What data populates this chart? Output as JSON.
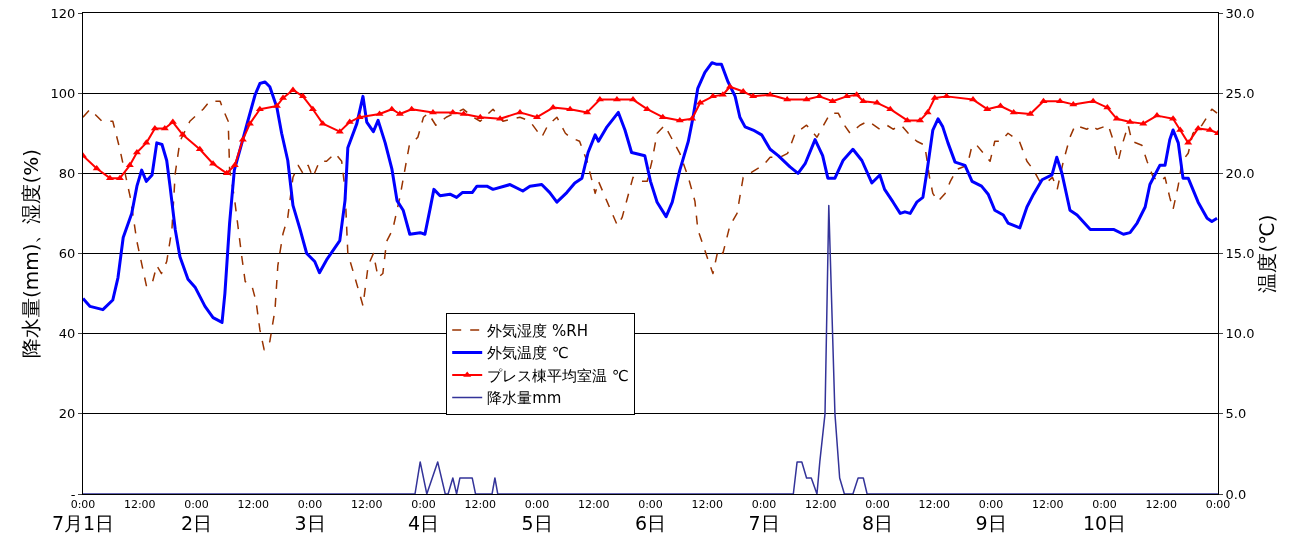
{
  "chart_data": {
    "type": "line",
    "ylabel": "降水量(mm)、湿度(%)",
    "y2label": "温度(℃)",
    "xlim": [
      "--07-01T00:00",
      "--07-11T00:00"
    ],
    "xticks": [
      {
        "value": "--07-01T00:00",
        "label": "0:00"
      },
      {
        "value": "--07-01T12:00",
        "label": "12:00"
      },
      {
        "value": "--07-02T00:00",
        "label": "0:00"
      },
      {
        "value": "--07-02T12:00",
        "label": "12:00"
      },
      {
        "value": "--07-03T00:00",
        "label": "0:00"
      },
      {
        "value": "--07-03T12:00",
        "label": "12:00"
      },
      {
        "value": "--07-04T00:00",
        "label": "0:00"
      },
      {
        "value": "--07-04T12:00",
        "label": "12:00"
      },
      {
        "value": "--07-05T00:00",
        "label": "0:00"
      },
      {
        "value": "--07-05T12:00",
        "label": "12:00"
      },
      {
        "value": "--07-06T00:00",
        "label": "0:00"
      },
      {
        "value": "--07-06T12:00",
        "label": "12:00"
      },
      {
        "value": "--07-07T00:00",
        "label": "0:00"
      },
      {
        "value": "--07-07T12:00",
        "label": "12:00"
      },
      {
        "value": "--07-08T00:00",
        "label": "0:00"
      },
      {
        "value": "--07-08T12:00",
        "label": "12:00"
      },
      {
        "value": "--07-09T00:00",
        "label": "0:00"
      },
      {
        "value": "--07-09T12:00",
        "label": "12:00"
      },
      {
        "value": "--07-10T00:00",
        "label": "0:00"
      },
      {
        "value": "--07-10T12:00",
        "label": "12:00"
      },
      {
        "value": "--07-11T00:00",
        "label": "0:00"
      }
    ],
    "x2lim": [
      "--07-01T00:00",
      "--07-11T00:00"
    ],
    "x2ticks": [
      {
        "value": "--07-01T00:00",
        "label": "7月1日"
      },
      {
        "value": "--07-02T00:00",
        "label": "2日"
      },
      {
        "value": "--07-03T00:00",
        "label": "3日"
      },
      {
        "value": "--07-04T00:00",
        "label": "4日"
      },
      {
        "value": "--07-05T00:00",
        "label": "5日"
      },
      {
        "value": "--07-06T00:00",
        "label": "6日"
      },
      {
        "value": "--07-07T00:00",
        "label": "7日"
      },
      {
        "value": "--07-08T00:00",
        "label": "8日"
      },
      {
        "value": "--07-09T00:00",
        "label": "9日"
      },
      {
        "value": "--07-10T00:00",
        "label": "10日"
      }
    ],
    "ylim": [
      0,
      120
    ],
    "yticks": [
      {
        "value": 0,
        "label": "-"
      },
      20,
      40,
      60,
      80,
      100,
      120
    ],
    "y2lim": [
      0,
      30
    ],
    "y2ticks": [
      {
        "value": 0,
        "label": "0.0"
      },
      {
        "value": 5,
        "label": "5.0"
      },
      {
        "value": 10,
        "label": "10.0"
      },
      {
        "value": 15,
        "label": "15.0"
      },
      {
        "value": 20,
        "label": "20.0"
      },
      {
        "value": 25,
        "label": "25.0"
      },
      {
        "value": 30,
        "label": "30.0"
      }
    ],
    "grid": "y",
    "legend": "bottom",
    "series": [
      {
        "name": "外気湿度 %RH",
        "color": "#993300",
        "marker": "none",
        "line_style": "dashed",
        "x": [
          "--07-01T00:00",
          "--07-01T01:30",
          "--07-01T04:00",
          "--07-01T06:18",
          "--07-01T07:48",
          "--07-01T10:00",
          "--07-01T11:24",
          "--07-01T13:24",
          "--07-01T14:30",
          "--07-01T15:36",
          "--07-01T16:36",
          "--07-01T17:42",
          "--07-01T18:48",
          "--07-01T19:30",
          "--07-01T20:30",
          "--07-01T22:36",
          "--07-02T01:24",
          "--07-02T02:48",
          "--07-02T05:00",
          "--07-02T05:36",
          "--07-02T06:42",
          "--07-02T07:00",
          "--07-02T08:00",
          "--07-02T09:36",
          "--07-02T10:18",
          "--07-02T11:42",
          "--07-02T12:36",
          "--07-02T13:24",
          "--07-02T14:18",
          "--07-02T15:30",
          "--07-02T16:36",
          "--07-02T17:12",
          "--07-02T18:18",
          "--07-02T19:18",
          "--07-02T20:24",
          "--07-02T21:30",
          "--07-02T22:30",
          "--07-02T23:36",
          "--07-03T00:36",
          "--07-03T02:00",
          "--07-03T03:30",
          "--07-03T05:18",
          "--07-03T06:42",
          "--07-03T07:24",
          "--07-03T08:00",
          "--07-03T09:30",
          "--07-03T11:12",
          "--07-03T12:18",
          "--07-03T13:24",
          "--07-03T14:24",
          "--07-03T15:24",
          "--07-03T16:12",
          "--07-03T17:30",
          "--07-03T19:00",
          "--07-03T21:00",
          "--07-03T22:48",
          "--07-04T00:00",
          "--07-04T01:00",
          "--07-04T02:36",
          "--07-04T04:48",
          "--07-04T08:24",
          "--07-04T10:30",
          "--07-04T12:00",
          "--07-04T14:42",
          "--07-04T16:48",
          "--07-04T20:24",
          "--07-04T22:30",
          "--07-05T01:00",
          "--07-05T02:18",
          "--07-05T04:12",
          "--07-05T06:00",
          "--07-05T07:00",
          "--07-05T09:00",
          "--07-05T10:36",
          "--07-05T12:18",
          "--07-05T13:00",
          "--07-05T14:48",
          "--07-05T17:00",
          "--07-05T18:00",
          "--07-05T20:18",
          "--07-05T21:48",
          "--07-05T23:18",
          "--07-06T00:18",
          "--07-06T01:24",
          "--07-06T03:00",
          "--07-06T04:48",
          "--07-06T06:12",
          "--07-06T08:00",
          "--07-06T09:24",
          "--07-06T10:00",
          "--07-06T12:00",
          "--07-06T13:12",
          "--07-06T14:18",
          "--07-06T15:18",
          "--07-06T16:48",
          "--07-06T18:18",
          "--07-06T19:36",
          "--07-06T21:00",
          "--07-06T23:48",
          "--07-07T01:18",
          "--07-07T03:24",
          "--07-07T05:00",
          "--07-07T06:36",
          "--07-07T09:00",
          "--07-07T11:12",
          "--07-07T14:00",
          "--07-07T15:42",
          "--07-07T17:00",
          "--07-07T18:12",
          "--07-07T20:18",
          "--07-07T22:00",
          "--07-08T00:30",
          "--07-08T02:00",
          "--07-08T03:18",
          "--07-08T05:00",
          "--07-08T06:30",
          "--07-08T08:18",
          "--07-08T10:00",
          "--07-08T11:00",
          "--07-08T11:42",
          "--07-08T12:48",
          "--07-08T14:18",
          "--07-08T15:24",
          "--07-08T16:48",
          "--07-08T19:00",
          "--07-08T20:00",
          "--07-08T21:00",
          "--07-08T23:48",
          "--07-09T00:48",
          "--07-09T02:00",
          "--07-09T03:36",
          "--07-09T06:00",
          "--07-09T07:36",
          "--07-09T08:54",
          "--07-09T10:18",
          "--07-09T12:00",
          "--07-09T13:00",
          "--07-09T14:00",
          "--07-09T15:18",
          "--07-09T16:42",
          "--07-09T17:48",
          "--07-09T20:18",
          "--07-09T21:18",
          "--07-09T22:24",
          "--07-10T00:48",
          "--07-10T01:54",
          "--07-10T02:54",
          "--07-10T03:42",
          "--07-10T05:00",
          "--07-10T05:48",
          "--07-10T07:54",
          "--07-10T09:00",
          "--07-10T10:18",
          "--07-10T11:42",
          "--07-10T12:48",
          "--07-10T13:48",
          "--07-10T14:30",
          "--07-10T15:36",
          "--07-10T16:24",
          "--07-10T17:42",
          "--07-10T18:42",
          "--07-10T20:36",
          "--07-10T22:42",
          "--07-10T23:48"
        ],
        "values": [
          94,
          96,
          93,
          93,
          86,
          74,
          63,
          52,
          52,
          57,
          55,
          58,
          66,
          80,
          88,
          93,
          96,
          98,
          98,
          96,
          93,
          81,
          74,
          59,
          53,
          52,
          48,
          41,
          36,
          38,
          46,
          57,
          65,
          69,
          79,
          82,
          80,
          82,
          79,
          83,
          83,
          85,
          83,
          76,
          60,
          54,
          47,
          57,
          60,
          54,
          55,
          63,
          66,
          74,
          87,
          89,
          94,
          95,
          92,
          94,
          96,
          94,
          93,
          96,
          93,
          94,
          93,
          89,
          92,
          94,
          90,
          89,
          88,
          83,
          75,
          78,
          73,
          67,
          69,
          79,
          78,
          78,
          83,
          90,
          92,
          88,
          85,
          79,
          73,
          66,
          59,
          55,
          61,
          60,
          67,
          70,
          79,
          80,
          82,
          84,
          84,
          85,
          90,
          92,
          89,
          95,
          95,
          92,
          90,
          92,
          93,
          91,
          92,
          91,
          92,
          90,
          88,
          87,
          79,
          75,
          73,
          75,
          78,
          81,
          82,
          87,
          87,
          83,
          88,
          88,
          90,
          88,
          83,
          81,
          78,
          78,
          79,
          76,
          83,
          89,
          92,
          91,
          92,
          91,
          92,
          88,
          83,
          87,
          92,
          88,
          87,
          83,
          79,
          78,
          79,
          74,
          71,
          77,
          83,
          85,
          90,
          92,
          96,
          95
        ]
      },
      {
        "name": "外気温度 ℃",
        "color": "#0000ff",
        "marker": "none",
        "line_style": "solid",
        "axis": "y2",
        "x": [
          "--07-01T00:00",
          "--07-01T01:30",
          "--07-01T04:12",
          "--07-01T06:18",
          "--07-01T07:24",
          "--07-01T08:30",
          "--07-01T10:18",
          "--07-01T11:24",
          "--07-01T12:24",
          "--07-01T13:24",
          "--07-01T14:36",
          "--07-01T15:36",
          "--07-01T16:42",
          "--07-01T17:42",
          "--07-01T18:24",
          "--07-01T19:30",
          "--07-01T20:30",
          "--07-01T22:12",
          "--07-01T23:42",
          "--07-02T01:48",
          "--07-02T03:30",
          "--07-02T05:24",
          "--07-02T06:00",
          "--07-02T07:00",
          "--07-02T08:00",
          "--07-02T09:36",
          "--07-02T10:42",
          "--07-02T12:24",
          "--07-02T13:24",
          "--07-02T14:30",
          "--07-02T15:30",
          "--07-02T17:00",
          "--07-02T18:00",
          "--07-02T19:18",
          "--07-02T20:24",
          "--07-02T21:54",
          "--07-02T23:18",
          "--07-03T01:00",
          "--07-03T02:00",
          "--07-03T03:30",
          "--07-03T06:18",
          "--07-03T07:24",
          "--07-03T08:00",
          "--07-03T09:54",
          "--07-03T11:12",
          "--07-03T12:00",
          "--07-03T13:24",
          "--07-03T14:24",
          "--07-03T15:54",
          "--07-03T17:18",
          "--07-03T18:24",
          "--07-03T19:42",
          "--07-03T21:06",
          "--07-03T23:18",
          "--07-04T00:18",
          "--07-04T01:24",
          "--07-04T02:12",
          "--07-04T03:30",
          "--07-04T05:36",
          "--07-04T07:00",
          "--07-04T08:12",
          "--07-04T10:18",
          "--07-04T11:18",
          "--07-04T13:24",
          "--07-04T14:42",
          "--07-04T18:18",
          "--07-04T21:00",
          "--07-04T22:30",
          "--07-05T01:00",
          "--07-05T02:42",
          "--07-05T04:12",
          "--07-05T06:18",
          "--07-05T08:00",
          "--07-05T09:30",
          "--07-05T10:48",
          "--07-05T12:18",
          "--07-05T13:00",
          "--07-05T14:48",
          "--07-05T17:12",
          "--07-05T18:36",
          "--07-05T20:00",
          "--07-05T22:48",
          "--07-06T00:00",
          "--07-06T01:24",
          "--07-06T03:18",
          "--07-06T04:36",
          "--07-06T06:12",
          "--07-06T08:00",
          "--07-06T09:00",
          "--07-06T10:00",
          "--07-06T11:30",
          "--07-06T13:00",
          "--07-06T14:00",
          "--07-06T15:00",
          "--07-06T16:24",
          "--07-06T17:54",
          "--07-06T18:54",
          "--07-06T20:00",
          "--07-06T21:42",
          "--07-06T23:30",
          "--07-07T01:18",
          "--07-07T03:00",
          "--07-07T05:30",
          "--07-07T07:12",
          "--07-07T08:42",
          "--07-07T10:48",
          "--07-07T12:24",
          "--07-07T13:30",
          "--07-07T15:00",
          "--07-07T16:42",
          "--07-07T18:48",
          "--07-07T20:42",
          "--07-07T22:48",
          "--07-08T00:30",
          "--07-08T01:30",
          "--07-08T03:18",
          "--07-08T04:48",
          "--07-08T05:48",
          "--07-08T06:54",
          "--07-08T08:18",
          "--07-08T09:36",
          "--07-08T10:36",
          "--07-08T11:42",
          "--07-08T12:48",
          "--07-08T13:48",
          "--07-08T14:54",
          "--07-08T16:24",
          "--07-08T18:30",
          "--07-08T20:00",
          "--07-08T22:00",
          "--07-08T23:24",
          "--07-09T00:48",
          "--07-09T02:36",
          "--07-09T03:36",
          "--07-09T06:06",
          "--07-09T07:36",
          "--07-09T09:00",
          "--07-09T10:48",
          "--07-09T12:54",
          "--07-09T13:54",
          "--07-09T15:00",
          "--07-09T16:42",
          "--07-09T18:12",
          "--07-09T21:00",
          "--07-09T23:48",
          "--07-10T01:54",
          "--07-10T04:00",
          "--07-10T05:24",
          "--07-10T06:54",
          "--07-10T08:36",
          "--07-10T09:36",
          "--07-10T11:42",
          "--07-10T12:48",
          "--07-10T13:48",
          "--07-10T14:30",
          "--07-10T15:36",
          "--07-10T16:36",
          "--07-10T17:42",
          "--07-10T19:48",
          "--07-10T21:42",
          "--07-10T22:42",
          "--07-10T23:48"
        ],
        "values": [
          12.2,
          11.7,
          11.5,
          12.1,
          13.5,
          16.0,
          17.5,
          19.2,
          20.2,
          19.5,
          19.9,
          21.9,
          21.8,
          20.8,
          19.2,
          16.5,
          14.8,
          13.4,
          12.9,
          11.7,
          11.0,
          10.7,
          12.5,
          16.9,
          20.2,
          21.9,
          23.1,
          24.9,
          25.6,
          25.7,
          25.4,
          24.1,
          22.5,
          20.8,
          18.0,
          16.5,
          15.0,
          14.5,
          13.8,
          14.6,
          15.8,
          18.3,
          21.6,
          23.1,
          24.8,
          23.2,
          22.6,
          23.3,
          21.9,
          20.3,
          18.3,
          17.7,
          16.2,
          16.3,
          16.2,
          17.8,
          19.0,
          18.6,
          18.7,
          18.5,
          18.8,
          18.8,
          19.2,
          19.2,
          19.0,
          19.3,
          18.9,
          19.2,
          19.3,
          18.8,
          18.2,
          18.8,
          19.4,
          19.7,
          21.3,
          22.4,
          22.0,
          22.9,
          23.8,
          22.7,
          21.3,
          21.1,
          19.5,
          18.2,
          17.3,
          18.2,
          20.2,
          22.0,
          23.5,
          25.3,
          26.3,
          26.9,
          26.8,
          26.8,
          25.7,
          24.8,
          23.5,
          22.9,
          22.7,
          22.4,
          21.5,
          21.1,
          20.4,
          20.0,
          20.6,
          22.1,
          21.1,
          19.7,
          19.7,
          20.8,
          21.5,
          20.8,
          19.4,
          19.9,
          19.0,
          18.2,
          17.5,
          17.6,
          17.5,
          18.2,
          18.5,
          20.4,
          22.7,
          23.4,
          22.9,
          21.9,
          20.7,
          20.5,
          19.5,
          19.2,
          18.7,
          17.7,
          17.4,
          16.9,
          16.6,
          17.9,
          18.7,
          19.6,
          19.9,
          21.0,
          20.0,
          17.7,
          17.4,
          16.5,
          16.5,
          16.5,
          16.2,
          16.3,
          16.9,
          17.9,
          19.3,
          20.5,
          20.5,
          22.1,
          22.7,
          21.9,
          19.7,
          19.7,
          18.2,
          17.2,
          17.0,
          17.2
        ]
      },
      {
        "name": "プレス棟平均室温 ℃",
        "color": "#ff0000",
        "marker": "triangle",
        "line_style": "solid",
        "axis": "y2",
        "x": [
          "--07-01T00:00",
          "--07-01T02:54",
          "--07-01T05:42",
          "--07-01T07:48",
          "--07-01T09:54",
          "--07-01T11:24",
          "--07-01T13:24",
          "--07-01T15:12",
          "--07-01T17:18",
          "--07-01T19:00",
          "--07-01T21:06",
          "--07-02T00:42",
          "--07-02T03:30",
          "--07-02T06:24",
          "--07-02T08:06",
          "--07-02T09:48",
          "--07-02T11:18",
          "--07-02T13:24",
          "--07-02T17:00",
          "--07-02T18:18",
          "--07-02T20:24",
          "--07-02T22:30",
          "--07-03T00:36",
          "--07-03T02:42",
          "--07-03T06:18",
          "--07-03T08:24",
          "--07-03T10:30",
          "--07-03T14:42",
          "--07-03T17:18",
          "--07-03T19:00",
          "--07-03T21:30",
          "--07-04T02:00",
          "--07-04T06:12",
          "--07-04T08:30",
          "--07-04T12:00",
          "--07-04T16:12",
          "--07-04T20:24",
          "--07-05T00:00",
          "--07-05T03:24",
          "--07-05T07:00",
          "--07-05T10:36",
          "--07-05T13:18",
          "--07-05T16:54",
          "--07-05T20:18",
          "--07-05T23:18",
          "--07-06T02:36",
          "--07-06T06:12",
          "--07-06T08:48",
          "--07-06T10:30",
          "--07-06T13:12",
          "--07-06T15:18",
          "--07-06T16:48",
          "--07-06T19:36",
          "--07-06T21:42",
          "--07-07T01:18",
          "--07-07T04:54",
          "--07-07T09:00",
          "--07-07T11:42",
          "--07-07T14:30",
          "--07-07T17:30",
          "--07-07T19:36",
          "--07-07T21:00",
          "--07-07T23:54",
          "--07-08T02:42",
          "--07-08T06:18",
          "--07-08T09:00",
          "--07-08T10:36",
          "--07-08T12:06",
          "--07-08T14:36",
          "--07-08T20:12",
          "--07-08T23:12",
          "--07-09T02:00",
          "--07-09T04:48",
          "--07-09T08:18",
          "--07-09T11:06",
          "--07-09T14:36",
          "--07-09T17:24",
          "--07-09T21:36",
          "--07-10T00:36",
          "--07-10T02:36",
          "--07-10T05:24",
          "--07-10T08:12",
          "--07-10T11:06",
          "--07-10T14:30",
          "--07-10T16:00",
          "--07-10T17:42",
          "--07-10T19:48",
          "--07-10T22:18",
          "--07-11T00:00"
        ],
        "values": [
          21.1,
          20.3,
          19.7,
          19.7,
          20.5,
          21.3,
          21.9,
          22.8,
          22.8,
          23.2,
          22.4,
          21.5,
          20.6,
          20.0,
          20.5,
          22.1,
          23.1,
          24.0,
          24.2,
          24.7,
          25.2,
          24.8,
          24.0,
          23.1,
          22.6,
          23.2,
          23.5,
          23.7,
          24.0,
          23.7,
          24.0,
          23.8,
          23.8,
          23.7,
          23.5,
          23.4,
          23.8,
          23.5,
          24.1,
          24.0,
          23.8,
          24.6,
          24.6,
          24.6,
          24.0,
          23.5,
          23.3,
          23.4,
          24.4,
          24.8,
          24.9,
          25.4,
          25.1,
          24.8,
          24.9,
          24.6,
          24.6,
          24.8,
          24.5,
          24.8,
          24.9,
          24.5,
          24.4,
          24.0,
          23.3,
          23.3,
          23.8,
          24.7,
          24.8,
          24.6,
          24.0,
          24.2,
          23.8,
          23.7,
          24.5,
          24.5,
          24.3,
          24.5,
          24.1,
          23.4,
          23.2,
          23.1,
          23.6,
          23.4,
          22.7,
          21.9,
          22.8,
          22.7,
          22.5
        ]
      },
      {
        "name": "降水量mm",
        "color": "#333399",
        "marker": "none",
        "line_style": "solid",
        "x": [
          "--07-01T00:00",
          "--07-03T22:12",
          "--07-03T23:18",
          "--07-04T00:42",
          "--07-04T03:00",
          "--07-04T04:36",
          "--07-04T05:12",
          "--07-04T06:12",
          "--07-04T07:00",
          "--07-04T07:42",
          "--07-04T10:18",
          "--07-04T11:00",
          "--07-04T14:30",
          "--07-04T15:06",
          "--07-04T15:42",
          "--07-07T06:12",
          "--07-07T07:00",
          "--07-07T08:00",
          "--07-07T09:00",
          "--07-07T10:00",
          "--07-07T11:12",
          "--07-07T11:48",
          "--07-07T12:54",
          "--07-07T13:42",
          "--07-07T15:00",
          "--07-07T16:00",
          "--07-07T17:00",
          "--07-07T18:48",
          "--07-07T19:54",
          "--07-07T21:00",
          "--07-07T21:48",
          "--07-11T00:00"
        ],
        "values": [
          0,
          0,
          8,
          0,
          8,
          0,
          0,
          4,
          0,
          4,
          4,
          0,
          0,
          4,
          0,
          0,
          8,
          8,
          4,
          4,
          0,
          8,
          20,
          72,
          20,
          4,
          0,
          0,
          4,
          4,
          0,
          0
        ]
      }
    ]
  }
}
